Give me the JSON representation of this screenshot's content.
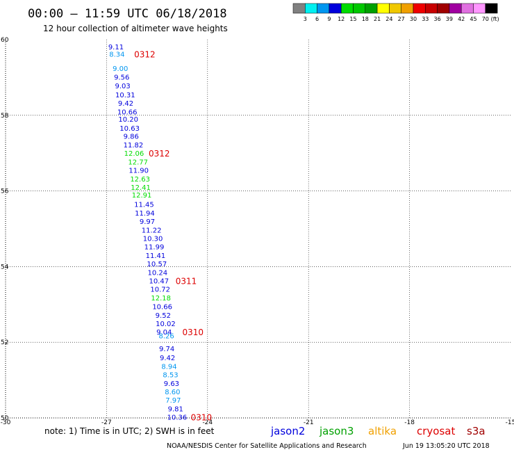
{
  "header": {
    "title": "00:00 – 11:59 UTC 06/18/2018",
    "subtitle": "12 hour collection of altimeter wave heights"
  },
  "colorbar": {
    "swatches": [
      "#808080",
      "#00f0f0",
      "#0096f0",
      "#0000dc",
      "#00dc00",
      "#00c800",
      "#00a000",
      "#ffff00",
      "#f0c800",
      "#f0a000",
      "#f00000",
      "#c80000",
      "#a00000",
      "#a000a0",
      "#e070e0",
      "#ff96ff",
      "#000000"
    ],
    "labels": [
      "3",
      "6",
      "9",
      "12",
      "15",
      "18",
      "21",
      "24",
      "27",
      "30",
      "33",
      "36",
      "39",
      "42",
      "45",
      "70"
    ],
    "unit": "(ft)"
  },
  "chart_data": {
    "type": "scatter",
    "title": "00:00 – 11:59 UTC 06/18/2018",
    "subtitle": "12 hour collection of altimeter wave heights",
    "xlim": [
      -30,
      -15
    ],
    "ylim": [
      50,
      60
    ],
    "xticks": [
      "-30",
      "-27",
      "-24",
      "-21",
      "-18",
      "-15"
    ],
    "yticks": [
      "50",
      "52",
      "54",
      "56",
      "58",
      "60"
    ],
    "grid": true,
    "points": [
      {
        "lon": -26.95,
        "lat": 59.82,
        "v": "9.11",
        "c": "#0000dc"
      },
      {
        "lon": -26.92,
        "lat": 59.62,
        "v": "8.34",
        "c": "#0096f0"
      },
      {
        "lon": -26.82,
        "lat": 59.25,
        "v": "9.00",
        "c": "#0096f0"
      },
      {
        "lon": -26.78,
        "lat": 59.02,
        "v": "9.56",
        "c": "#0000dc"
      },
      {
        "lon": -26.75,
        "lat": 58.79,
        "v": "9.03",
        "c": "#0000dc"
      },
      {
        "lon": -26.74,
        "lat": 58.55,
        "v": "10.31",
        "c": "#0000dc"
      },
      {
        "lon": -26.66,
        "lat": 58.33,
        "v": "9.42",
        "c": "#0000dc"
      },
      {
        "lon": -26.68,
        "lat": 58.1,
        "v": "10.66",
        "c": "#0000dc"
      },
      {
        "lon": -26.65,
        "lat": 57.9,
        "v": "10.20",
        "c": "#0000dc"
      },
      {
        "lon": -26.61,
        "lat": 57.67,
        "v": "10.63",
        "c": "#0000dc"
      },
      {
        "lon": -26.5,
        "lat": 57.45,
        "v": "9.86",
        "c": "#0000dc"
      },
      {
        "lon": -26.5,
        "lat": 57.22,
        "v": "11.82",
        "c": "#0000dc"
      },
      {
        "lon": -26.48,
        "lat": 57.0,
        "v": "12.06",
        "c": "#00dc00"
      },
      {
        "lon": -26.36,
        "lat": 56.77,
        "v": "12.77",
        "c": "#00dc00"
      },
      {
        "lon": -26.34,
        "lat": 56.55,
        "v": "11.90",
        "c": "#0000dc"
      },
      {
        "lon": -26.3,
        "lat": 56.32,
        "v": "12.63",
        "c": "#00dc00"
      },
      {
        "lon": -26.28,
        "lat": 56.1,
        "v": "12.41",
        "c": "#00dc00"
      },
      {
        "lon": -26.25,
        "lat": 55.9,
        "v": "12.91",
        "c": "#00dc00"
      },
      {
        "lon": -26.18,
        "lat": 55.65,
        "v": "11.45",
        "c": "#0000dc"
      },
      {
        "lon": -26.16,
        "lat": 55.42,
        "v": "11.94",
        "c": "#0000dc"
      },
      {
        "lon": -26.02,
        "lat": 55.2,
        "v": "9.97",
        "c": "#0000dc"
      },
      {
        "lon": -25.96,
        "lat": 54.97,
        "v": "11.22",
        "c": "#0000dc"
      },
      {
        "lon": -25.92,
        "lat": 54.75,
        "v": "10.30",
        "c": "#0000dc"
      },
      {
        "lon": -25.88,
        "lat": 54.53,
        "v": "11.99",
        "c": "#0000dc"
      },
      {
        "lon": -25.84,
        "lat": 54.3,
        "v": "11.41",
        "c": "#0000dc"
      },
      {
        "lon": -25.8,
        "lat": 54.08,
        "v": "10.57",
        "c": "#0000dc"
      },
      {
        "lon": -25.78,
        "lat": 53.85,
        "v": "10.24",
        "c": "#0000dc"
      },
      {
        "lon": -25.74,
        "lat": 53.63,
        "v": "10.47",
        "c": "#0000dc"
      },
      {
        "lon": -25.7,
        "lat": 53.41,
        "v": "10.72",
        "c": "#0000dc"
      },
      {
        "lon": -25.68,
        "lat": 53.18,
        "v": "12.18",
        "c": "#00dc00"
      },
      {
        "lon": -25.64,
        "lat": 52.95,
        "v": "10.66",
        "c": "#0000dc"
      },
      {
        "lon": -25.55,
        "lat": 52.72,
        "v": "9.52",
        "c": "#0000dc"
      },
      {
        "lon": -25.54,
        "lat": 52.5,
        "v": "10.02",
        "c": "#0000dc"
      },
      {
        "lon": -25.52,
        "lat": 52.28,
        "v": "9.04",
        "c": "#0000dc"
      },
      {
        "lon": -25.45,
        "lat": 52.18,
        "v": "8.26",
        "c": "#0096f0"
      },
      {
        "lon": -25.44,
        "lat": 51.84,
        "v": "9.74",
        "c": "#0000dc"
      },
      {
        "lon": -25.42,
        "lat": 51.6,
        "v": "9.42",
        "c": "#0000dc"
      },
      {
        "lon": -25.37,
        "lat": 51.37,
        "v": "8.94",
        "c": "#0096f0"
      },
      {
        "lon": -25.33,
        "lat": 51.15,
        "v": "8.53",
        "c": "#0096f0"
      },
      {
        "lon": -25.3,
        "lat": 50.92,
        "v": "9.63",
        "c": "#0000dc"
      },
      {
        "lon": -25.27,
        "lat": 50.7,
        "v": "8.60",
        "c": "#0096f0"
      },
      {
        "lon": -25.25,
        "lat": 50.48,
        "v": "7.97",
        "c": "#0096f0"
      },
      {
        "lon": -25.18,
        "lat": 50.25,
        "v": "9.81",
        "c": "#0000dc"
      },
      {
        "lon": -25.2,
        "lat": 50.03,
        "v": "10.36",
        "c": "#0000dc"
      }
    ],
    "cycle_labels": [
      {
        "text": "0312",
        "lon": -26.18,
        "lat": 59.62
      },
      {
        "text": "0312",
        "lon": -25.75,
        "lat": 57.0
      },
      {
        "text": "0311",
        "lon": -24.95,
        "lat": 53.63
      },
      {
        "text": "0310",
        "lon": -24.75,
        "lat": 52.28
      },
      {
        "text": "0310",
        "lon": -24.5,
        "lat": 50.03
      }
    ]
  },
  "footer": {
    "note": "note: 1) Time is in UTC; 2) SWH is in feet",
    "satellites": [
      {
        "name": "jason2",
        "color": "#0000dc"
      },
      {
        "name": "jason3",
        "color": "#00a000"
      },
      {
        "name": "altika",
        "color": "#f0a000"
      },
      {
        "name": "cryosat",
        "color": "#dd0000"
      },
      {
        "name": "s3a",
        "color": "#a00000"
      }
    ],
    "credit_left": "NOAA/NESDIS Center for Satellite Applications and Research",
    "credit_right": "Jun 19 13:05:20 UTC 2018"
  }
}
